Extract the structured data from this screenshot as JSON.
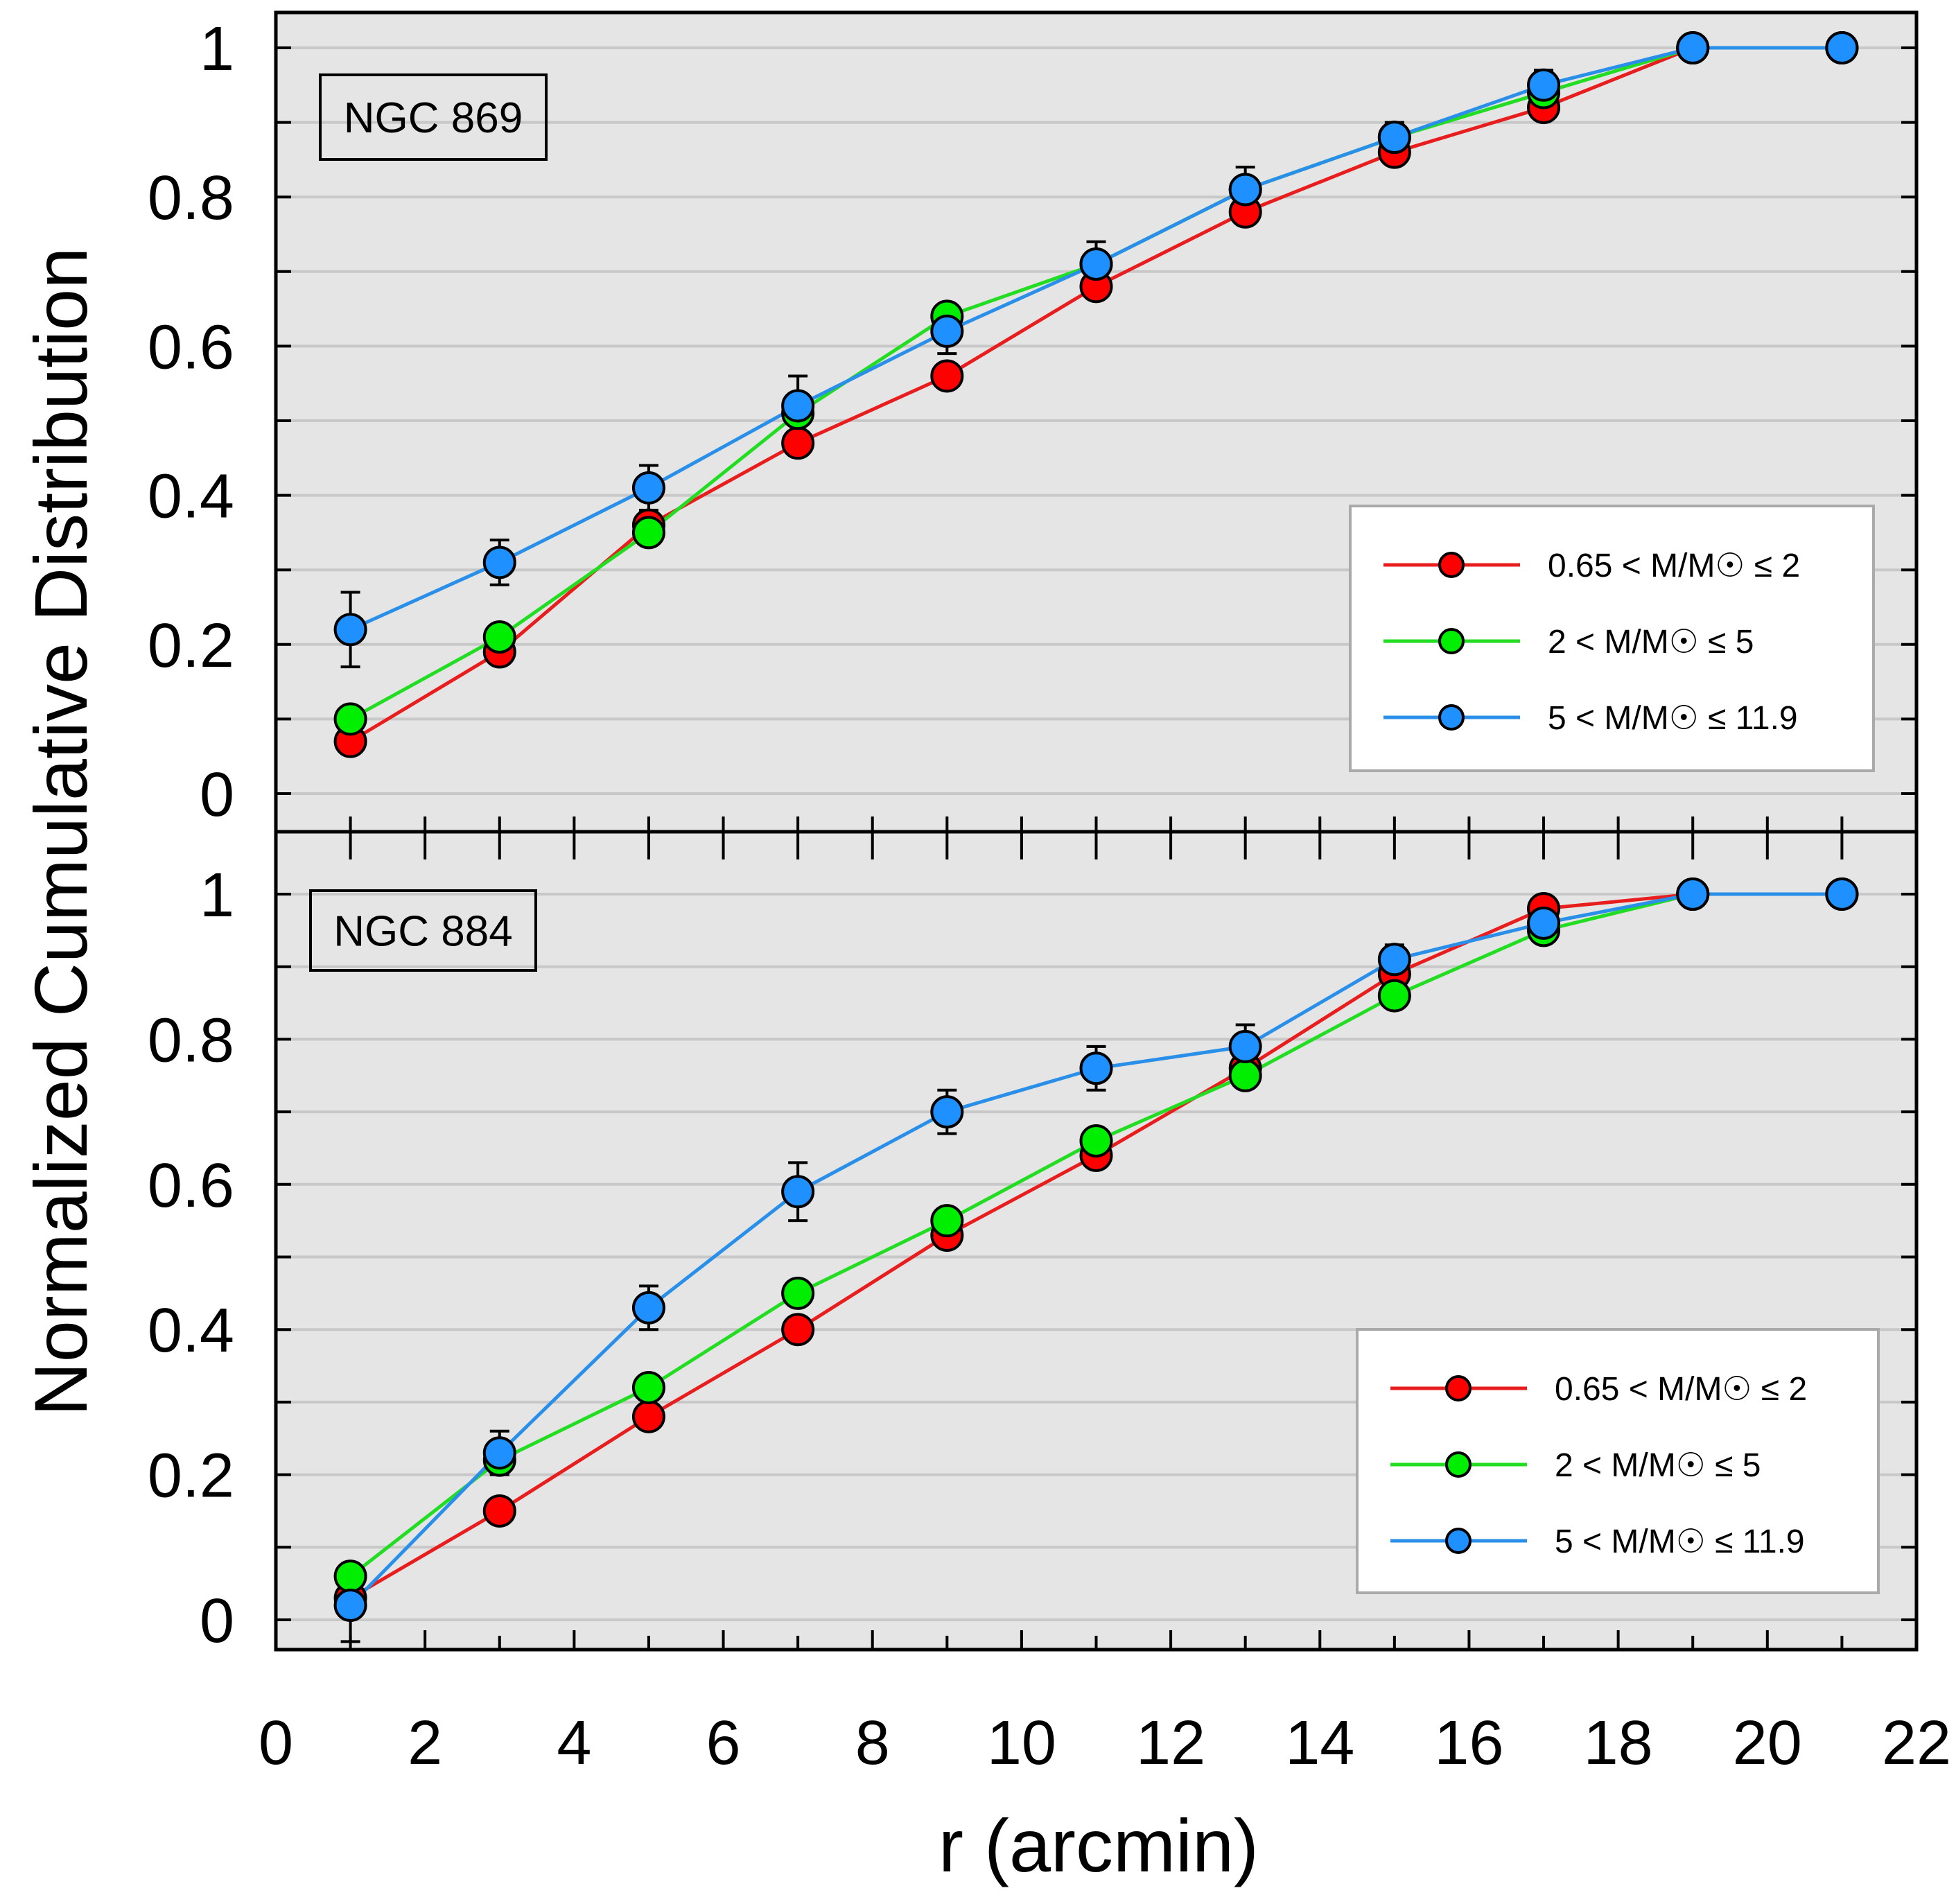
{
  "chart_data": {
    "type": "line",
    "title": "",
    "xlabel": "r (arcmin)",
    "ylabel": "Normalized Cumulative Distribution",
    "xlim": [
      0,
      22
    ],
    "x_ticks": [
      "0",
      "2",
      "4",
      "6",
      "8",
      "10",
      "12",
      "14",
      "16",
      "18",
      "20",
      "22"
    ],
    "panels": [
      {
        "label": "NGC 869",
        "ylim": [
          -0.05,
          1.05
        ],
        "y_ticks": [
          "0",
          "0.2",
          "0.4",
          "0.6",
          "0.8",
          "1"
        ],
        "legend_position": "lower-right",
        "x": [
          1,
          3,
          5,
          7,
          9,
          11,
          13,
          15,
          17,
          19,
          21
        ],
        "series": [
          {
            "name": "0.65 < M/M☉ ≤ 2",
            "color": "#ff0000",
            "line_color": "#e81d1d",
            "values": [
              0.07,
              0.19,
              0.36,
              0.47,
              0.56,
              0.68,
              0.78,
              0.86,
              0.92,
              1.0,
              1.0
            ]
          },
          {
            "name": "2 < M/M☉ ≤ 5",
            "color": "#00ee00",
            "line_color": "#22dd22",
            "values": [
              0.1,
              0.21,
              0.35,
              0.51,
              0.64,
              0.71,
              0.81,
              0.88,
              0.94,
              1.0,
              1.0
            ]
          },
          {
            "name": "5 < M/M☉ ≤ 11.9",
            "color": "#1e90ff",
            "line_color": "#2a8fe8",
            "values": [
              0.22,
              0.31,
              0.41,
              0.52,
              0.62,
              0.71,
              0.81,
              0.88,
              0.95,
              1.0,
              1.0
            ],
            "errors": [
              0.05,
              0.03,
              0.03,
              0.04,
              0.03,
              0.03,
              0.03,
              0.02,
              0.02,
              0,
              0
            ]
          }
        ]
      },
      {
        "label": "NGC 884",
        "ylim": [
          -0.05,
          1.05
        ],
        "y_ticks": [
          "0",
          "0.2",
          "0.4",
          "0.6",
          "0.8",
          "1"
        ],
        "legend_position": "lower-right",
        "x": [
          1,
          3,
          5,
          7,
          9,
          11,
          13,
          15,
          17,
          19,
          21
        ],
        "series": [
          {
            "name": "0.65 < M/M☉ ≤ 2",
            "color": "#ff0000",
            "line_color": "#e81d1d",
            "values": [
              0.03,
              0.15,
              0.28,
              0.4,
              0.53,
              0.64,
              0.76,
              0.89,
              0.98,
              1.0,
              1.0
            ]
          },
          {
            "name": "2 < M/M☉ ≤ 5",
            "color": "#00ee00",
            "line_color": "#22dd22",
            "values": [
              0.06,
              0.22,
              0.32,
              0.45,
              0.55,
              0.66,
              0.75,
              0.86,
              0.95,
              1.0,
              1.0
            ]
          },
          {
            "name": "5 < M/M☉ ≤ 11.9",
            "color": "#1e90ff",
            "line_color": "#2a8fe8",
            "values": [
              0.02,
              0.23,
              0.43,
              0.59,
              0.7,
              0.76,
              0.79,
              0.91,
              0.96,
              1.0,
              1.0
            ],
            "errors": [
              0.05,
              0.03,
              0.03,
              0.04,
              0.03,
              0.03,
              0.03,
              0.02,
              0.02,
              0,
              0
            ]
          }
        ]
      }
    ]
  }
}
